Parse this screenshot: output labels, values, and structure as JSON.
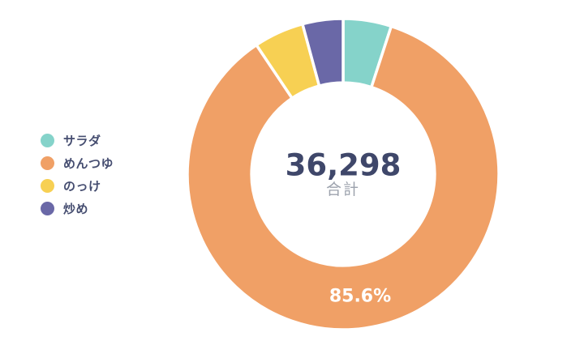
{
  "page": {
    "background_color": "#FFFFFF"
  },
  "chart_data": {
    "type": "pie",
    "variant": "donut",
    "title": "",
    "legend_position": "left",
    "direction": "clockwise",
    "start_angle_deg": 0,
    "inner_radius_ratio": 0.588,
    "center": {
      "value": "36,298",
      "label": "合計"
    },
    "total": 36298,
    "segments": [
      {
        "label": "サラダ",
        "color": "#85D3CA",
        "pct": 5.0,
        "pct_label": ""
      },
      {
        "label": "めんつゆ",
        "color": "#F0A066",
        "pct": 85.6,
        "pct_label": "85.6%"
      },
      {
        "label": "のっけ",
        "color": "#F7D053",
        "pct": 5.2,
        "pct_label": ""
      },
      {
        "label": "炒め",
        "color": "#6A68A7",
        "pct": 4.2,
        "pct_label": ""
      }
    ]
  },
  "styles": {
    "center_value_color": "#3F476A",
    "center_label_color": "#9CA2AD",
    "legend_text_color": "#454D70",
    "pct_label_color": "#FFFFFF",
    "segment_gap_color": "#FFFFFF"
  }
}
